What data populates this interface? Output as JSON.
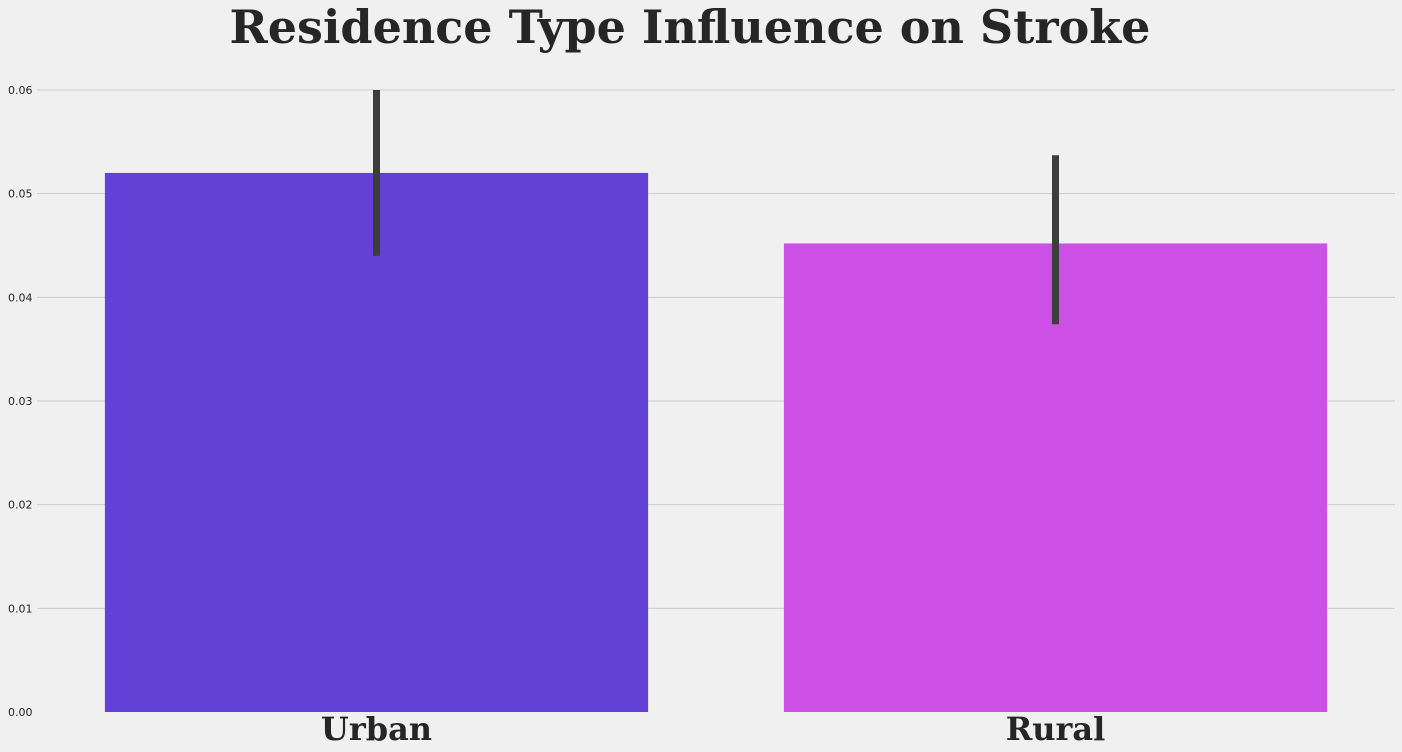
{
  "chart_data": {
    "type": "bar",
    "title": "Residence Type Influence on Stroke",
    "xlabel": "",
    "ylabel": "",
    "categories": [
      "Urban",
      "Rural"
    ],
    "values": [
      0.052,
      0.0452
    ],
    "error_bars": [
      {
        "low": 0.044,
        "high": 0.06
      },
      {
        "low": 0.0374,
        "high": 0.0537
      }
    ],
    "colors": [
      "#6441d6",
      "#cc50e6"
    ],
    "ylim": [
      0,
      0.06
    ],
    "yticks": [
      0,
      0.01,
      0.02,
      0.03,
      0.04,
      0.05,
      0.06
    ],
    "ytick_labels": [
      "0.00",
      "0.01",
      "0.02",
      "0.03",
      "0.04",
      "0.05",
      "0.06"
    ],
    "grid": "horizontal",
    "legend": "none",
    "error_color": "#3d3d3d",
    "background": "#f0f0f0"
  }
}
